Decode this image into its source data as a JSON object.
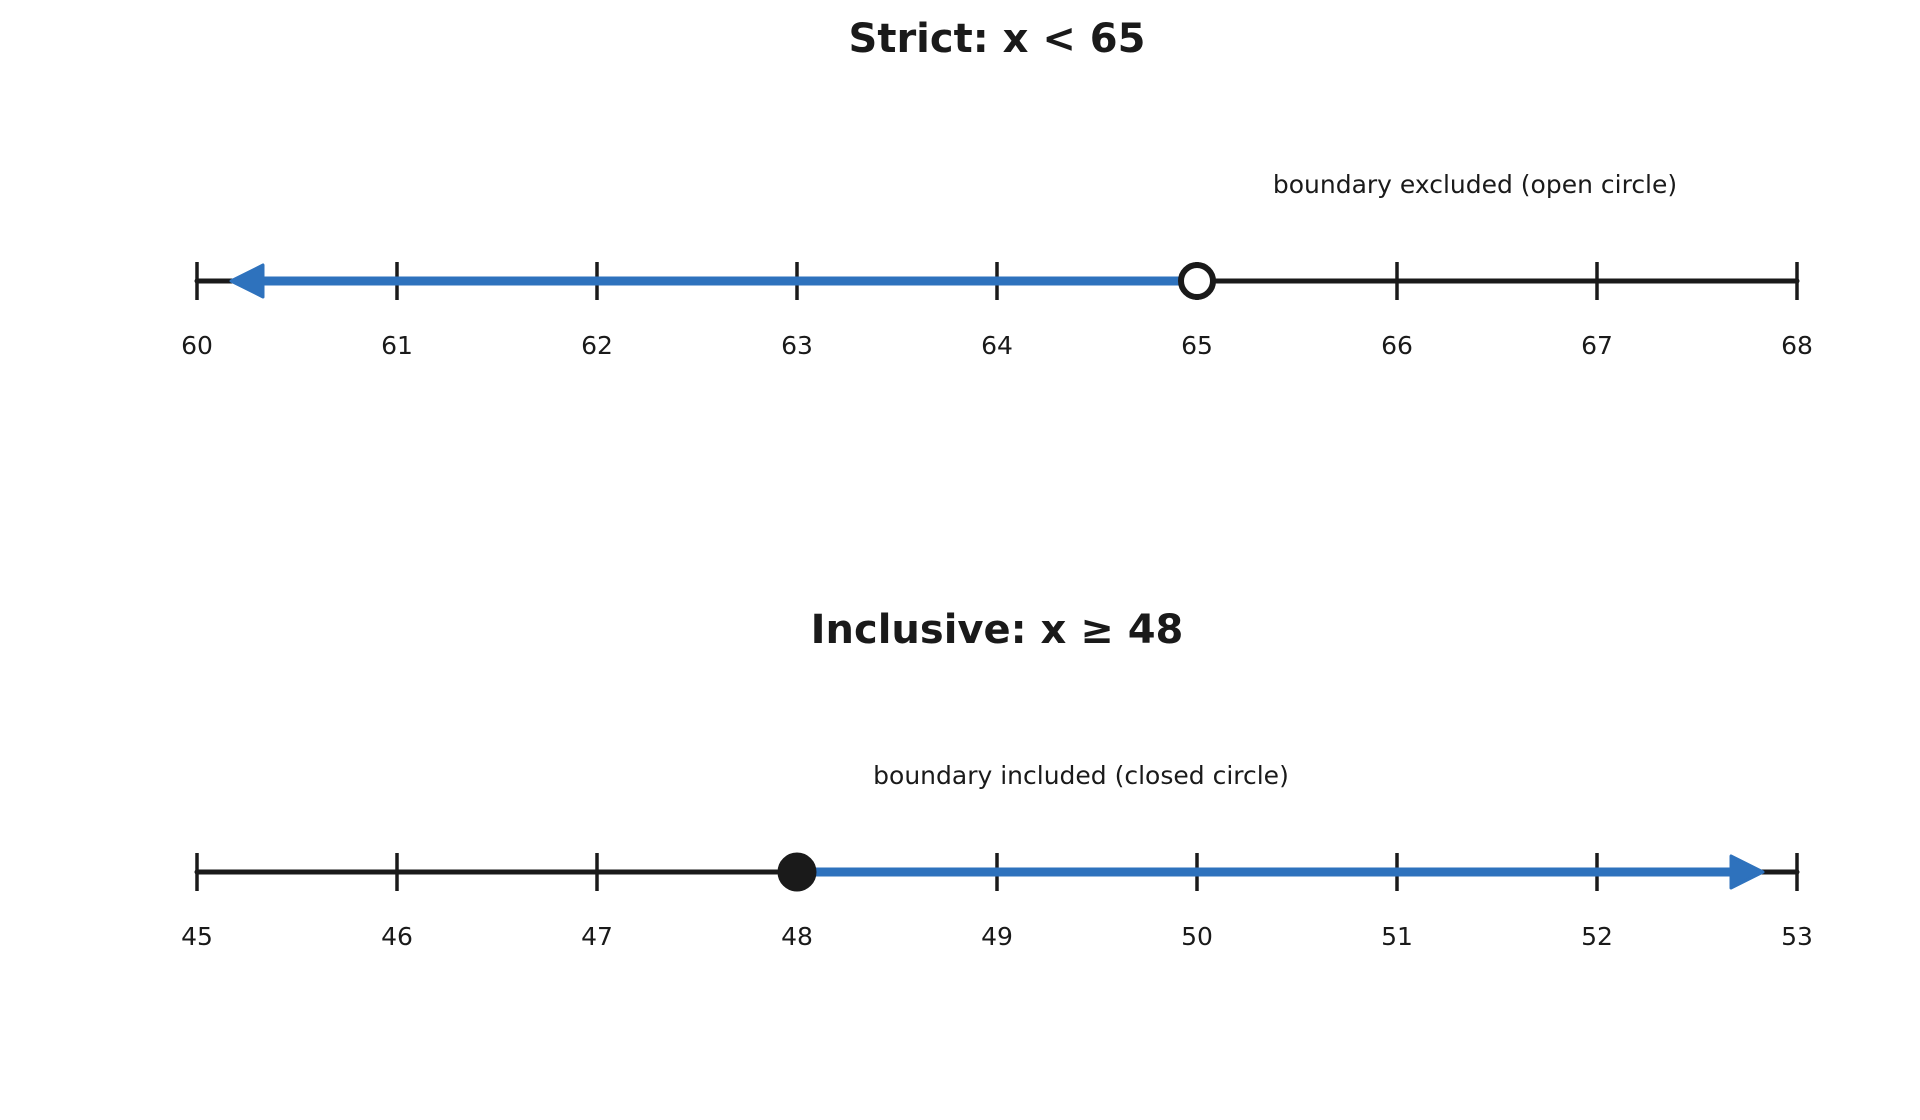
{
  "chart_data": [
    {
      "type": "number_line",
      "title": "Strict: x < 65",
      "annotation": "boundary excluded (open circle)",
      "xlim": [
        60,
        68
      ],
      "ticks": [
        60,
        61,
        62,
        63,
        64,
        65,
        66,
        67,
        68
      ],
      "boundary": 65,
      "boundary_style": "open",
      "direction": "left",
      "inequality": "x < 65"
    },
    {
      "type": "number_line",
      "title": "Inclusive: x ≥ 48",
      "annotation": "boundary included (closed circle)",
      "xlim": [
        45,
        53
      ],
      "ticks": [
        45,
        46,
        47,
        48,
        49,
        50,
        51,
        52,
        53
      ],
      "boundary": 48,
      "boundary_style": "closed",
      "direction": "right",
      "inequality": "x ≥ 48"
    }
  ],
  "colors": {
    "axis": "#1a1a1a",
    "ray": "#2e72bd",
    "open_circle_fill": "#ffffff",
    "closed_circle_fill": "#1a1a1a"
  }
}
